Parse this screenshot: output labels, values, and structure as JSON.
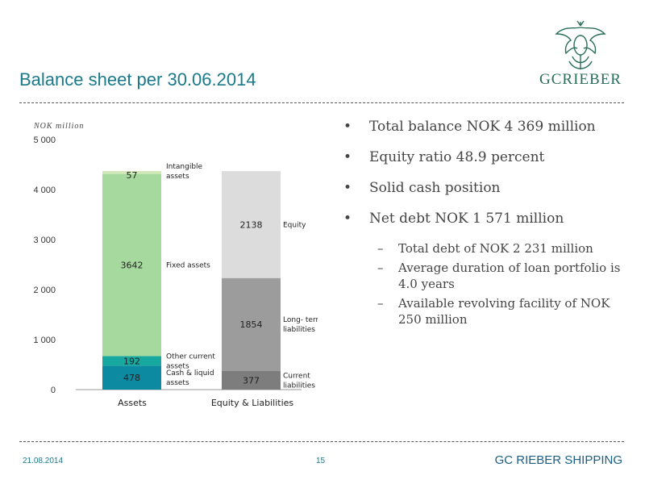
{
  "slide": {
    "title": "Balance sheet per 30.06.2014",
    "logo_text": "GCRIEBER",
    "footer_date": "21.08.2014",
    "page_number": "15",
    "footer_brand_1": "GC RIEBER",
    "footer_brand_2": " SHIPPING"
  },
  "bullets": [
    "Total balance NOK 4 369 million",
    "Equity ratio 48.9 percent",
    "Solid cash position",
    "Net debt NOK 1 571 million"
  ],
  "sub_bullets": [
    "Total debt of NOK 2 231 million",
    "Average duration of loan portfolio is 4.0 years",
    "Available revolving facility of NOK 250 million"
  ],
  "chart_data": {
    "type": "bar",
    "stacked": true,
    "ylabel": "NOK million",
    "ylim": [
      0,
      5000
    ],
    "yticks": [
      0,
      1000,
      2000,
      3000,
      4000,
      5000
    ],
    "ytick_labels": [
      "0",
      "1 000",
      "2 000",
      "3 000",
      "4 000",
      "5 000"
    ],
    "categories": [
      "Assets",
      "Equity & Liabilities"
    ],
    "stacks": [
      {
        "category": "Assets",
        "segments": [
          {
            "label": "Cash & liquid assets",
            "value": 478,
            "color": "#0b8aa2"
          },
          {
            "label": "Other current assets",
            "value": 192,
            "color": "#17a8a0"
          },
          {
            "label": "Fixed assets",
            "value": 3642,
            "color": "#a6d99d"
          },
          {
            "label": "Intangible assets",
            "value": 57,
            "color": "#cfe8b6"
          }
        ]
      },
      {
        "category": "Equity & Liabilities",
        "segments": [
          {
            "label": "Current liabilities",
            "value": 377,
            "color": "#7d7d7d"
          },
          {
            "label": "Long-term liabilities",
            "value": 1854,
            "color": "#9c9c9c"
          },
          {
            "label": "Equity",
            "value": 2138,
            "color": "#dcdcdc"
          }
        ]
      }
    ]
  }
}
